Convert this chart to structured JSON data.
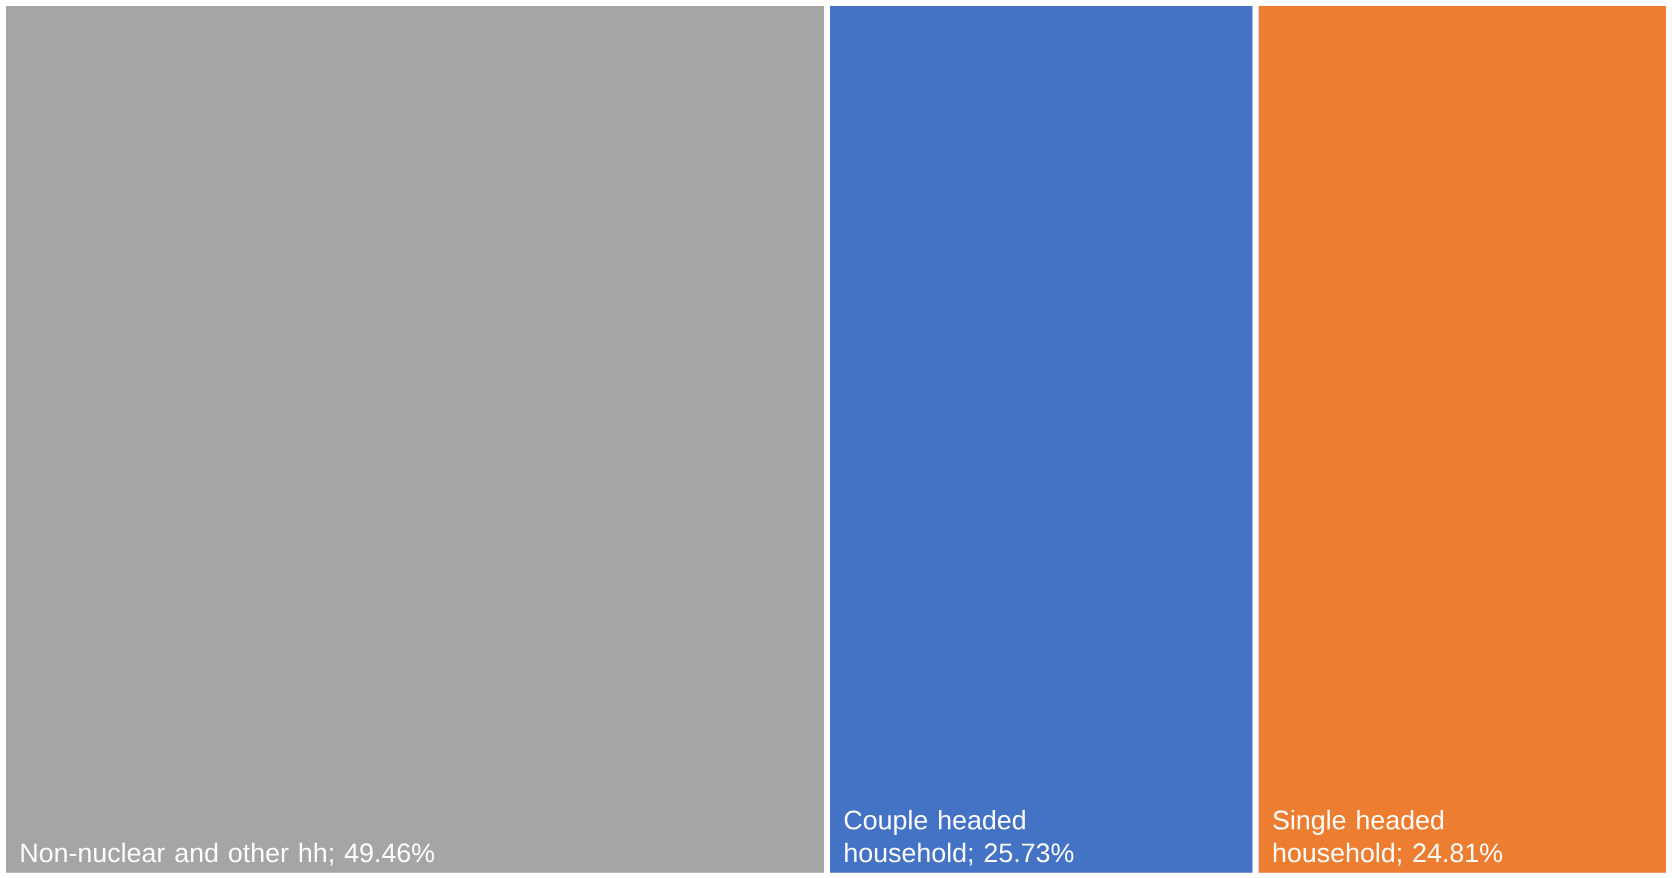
{
  "chart_data": {
    "type": "other",
    "categories": [
      "Non-nuclear and other hh",
      "Couple headed household",
      "Single headed household"
    ],
    "values": [
      49.46,
      25.73,
      24.81
    ],
    "value_labels": [
      "; 49.46%",
      "; 25.73%",
      "; 24.81%"
    ],
    "colors": [
      "#a5a5a5",
      "#4472c4",
      "#ed7d31"
    ]
  }
}
